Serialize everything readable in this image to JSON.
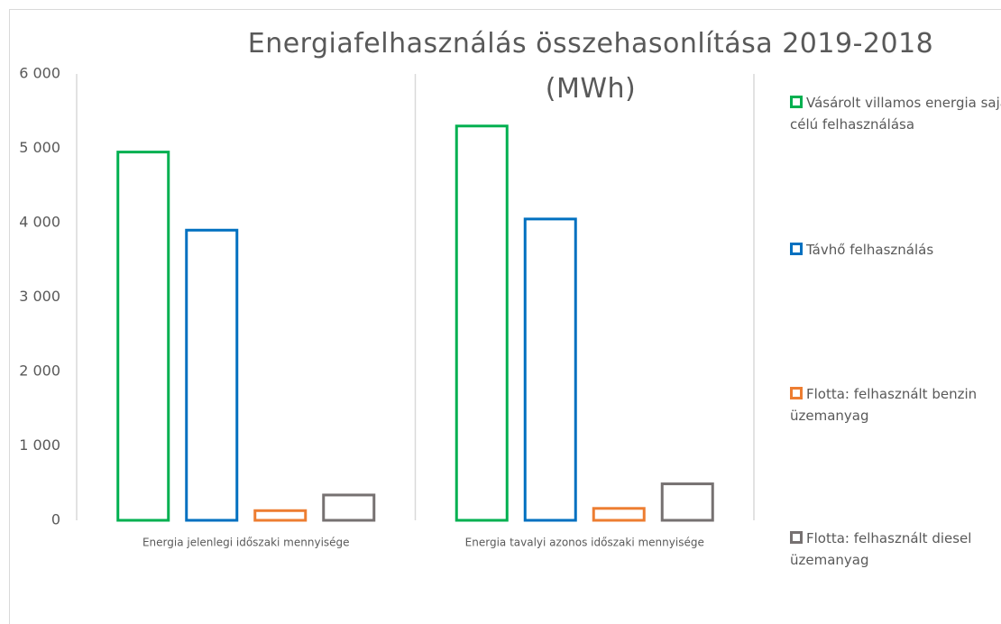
{
  "chart_data": {
    "type": "bar",
    "title": "Energiafelhasználás összehasonlítása 2019-2018 (MWh)",
    "categories": [
      "Energia jelenlegi időszaki mennyisége",
      "Energia tavalyi azonos időszaki mennyisége"
    ],
    "series": [
      {
        "name": "Vásárolt villamos energia saját célú felhasználása",
        "color": "#00b050",
        "values": [
          4950,
          5300
        ]
      },
      {
        "name": "Távhő felhasználás",
        "color": "#0070c0",
        "values": [
          3900,
          4050
        ]
      },
      {
        "name": "Flotta: felhasznált benzin üzemanyag",
        "color": "#ed7d31",
        "values": [
          130,
          160
        ]
      },
      {
        "name": "Flotta: felhasznált diesel üzemanyag",
        "color": "#767171",
        "values": [
          340,
          490
        ]
      }
    ],
    "ylim": [
      0,
      6000
    ],
    "yticks": [
      0,
      {
        "value": 1000,
        "label": "1 000"
      },
      {
        "value": 2000,
        "label": "2 000"
      },
      {
        "value": 3000,
        "label": "3 000"
      },
      {
        "value": 4000,
        "label": "4 000"
      },
      {
        "value": 5000,
        "label": "5 000"
      },
      {
        "value": 6000,
        "label": "6 000"
      }
    ],
    "grid": false,
    "legend": "right",
    "fill": false
  }
}
